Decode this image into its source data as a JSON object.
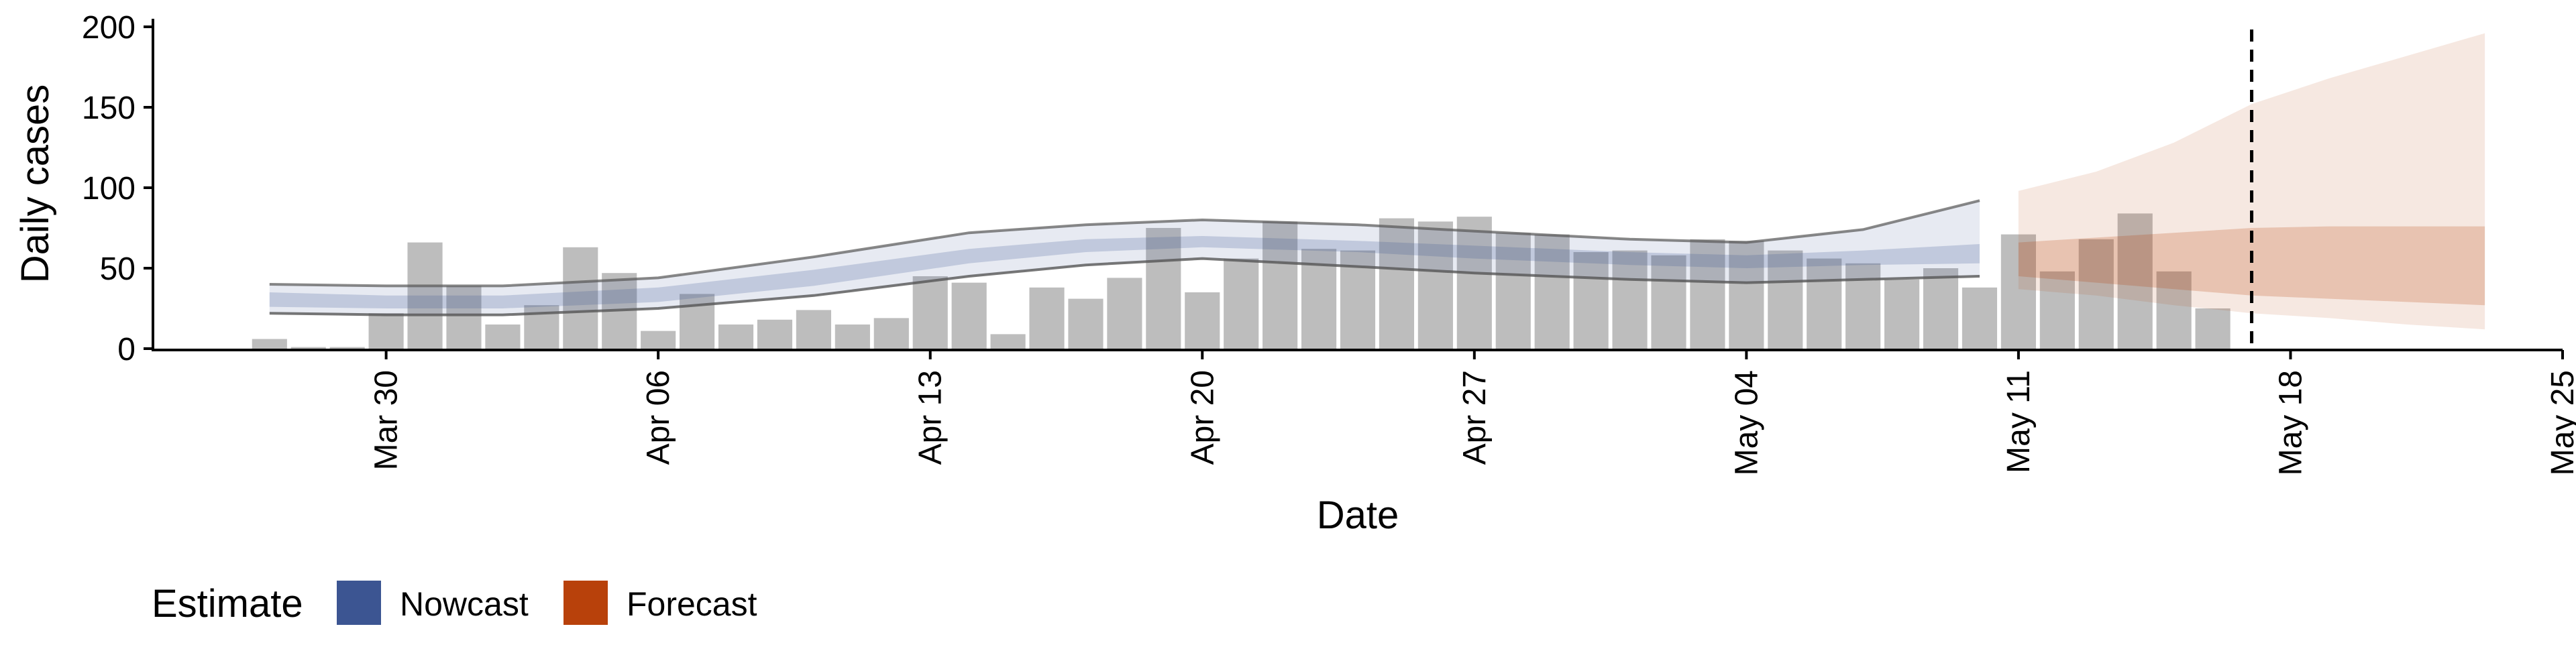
{
  "chart_data": {
    "type": "bar",
    "title": "",
    "xlabel": "Date",
    "ylabel": "Daily cases",
    "ylim": [
      0,
      200
    ],
    "y_ticks": [
      0,
      50,
      100,
      150,
      200
    ],
    "x_range": [
      "2020-03-24",
      "2020-05-25"
    ],
    "x_tick_labels": [
      {
        "date": "2020-03-30",
        "label": "Mar 30"
      },
      {
        "date": "2020-04-06",
        "label": "Apr 06"
      },
      {
        "date": "2020-04-13",
        "label": "Apr 13"
      },
      {
        "date": "2020-04-20",
        "label": "Apr 20"
      },
      {
        "date": "2020-04-27",
        "label": "Apr 27"
      },
      {
        "date": "2020-05-04",
        "label": "May 04"
      },
      {
        "date": "2020-05-11",
        "label": "May 11"
      },
      {
        "date": "2020-05-18",
        "label": "May 18"
      },
      {
        "date": "2020-05-25",
        "label": "May 25"
      }
    ],
    "grid": false,
    "reference_line": {
      "date": "2020-05-17",
      "style": "dashed"
    },
    "observed": {
      "dates": [
        "2020-03-27",
        "2020-03-28",
        "2020-03-29",
        "2020-03-30",
        "2020-03-31",
        "2020-04-01",
        "2020-04-02",
        "2020-04-03",
        "2020-04-04",
        "2020-04-05",
        "2020-04-06",
        "2020-04-07",
        "2020-04-08",
        "2020-04-09",
        "2020-04-10",
        "2020-04-11",
        "2020-04-12",
        "2020-04-13",
        "2020-04-14",
        "2020-04-15",
        "2020-04-16",
        "2020-04-17",
        "2020-04-18",
        "2020-04-19",
        "2020-04-20",
        "2020-04-21",
        "2020-04-22",
        "2020-04-23",
        "2020-04-24",
        "2020-04-25",
        "2020-04-26",
        "2020-04-27",
        "2020-04-28",
        "2020-04-29",
        "2020-04-30",
        "2020-05-01",
        "2020-05-02",
        "2020-05-03",
        "2020-05-04",
        "2020-05-05",
        "2020-05-06",
        "2020-05-07",
        "2020-05-08",
        "2020-05-09",
        "2020-05-10",
        "2020-05-11",
        "2020-05-12",
        "2020-05-13",
        "2020-05-14",
        "2020-05-15",
        "2020-05-16",
        "2020-05-17"
      ],
      "values": [
        6,
        1,
        1,
        22,
        66,
        39,
        15,
        27,
        63,
        47,
        11,
        34,
        15,
        18,
        24,
        15,
        19,
        45,
        41,
        9,
        38,
        31,
        44,
        75,
        35,
        56,
        79,
        62,
        61,
        81,
        79,
        82,
        72,
        71,
        60,
        61,
        58,
        68,
        67,
        61,
        56,
        53,
        43,
        50,
        38,
        71,
        48,
        68,
        84,
        48,
        25,
        0
      ]
    },
    "series": [
      {
        "name": "Nowcast",
        "color": "#3C5592",
        "dates": [
          "2020-03-27",
          "2020-03-30",
          "2020-04-02",
          "2020-04-06",
          "2020-04-10",
          "2020-04-14",
          "2020-04-17",
          "2020-04-20",
          "2020-04-24",
          "2020-04-27",
          "2020-05-01",
          "2020-05-04",
          "2020-05-07",
          "2020-05-10"
        ],
        "outer_low": [
          22,
          21,
          21,
          25,
          33,
          45,
          52,
          56,
          51,
          47,
          43,
          41,
          43,
          45
        ],
        "outer_high": [
          40,
          39,
          39,
          44,
          57,
          72,
          77,
          80,
          77,
          73,
          68,
          66,
          74,
          92
        ],
        "inner_low": [
          26,
          25,
          25,
          29,
          39,
          53,
          60,
          63,
          60,
          56,
          52,
          50,
          52,
          53
        ],
        "inner_high": [
          35,
          33,
          33,
          38,
          49,
          62,
          68,
          70,
          67,
          64,
          60,
          58,
          61,
          65
        ]
      },
      {
        "name": "Forecast",
        "color": "#B8410B",
        "dates": [
          "2020-05-11",
          "2020-05-13",
          "2020-05-15",
          "2020-05-17",
          "2020-05-19",
          "2020-05-21",
          "2020-05-23"
        ],
        "outer_low": [
          37,
          33,
          27,
          22,
          19,
          15,
          12
        ],
        "outer_high": [
          98,
          110,
          128,
          152,
          168,
          182,
          196
        ],
        "inner_low": [
          45,
          41,
          37,
          33,
          31,
          29,
          27
        ],
        "inner_high": [
          66,
          69,
          72,
          75,
          76,
          76,
          76
        ]
      }
    ],
    "legend": {
      "title": "Estimate",
      "placement": "bottom-left",
      "entries": [
        "Nowcast",
        "Forecast"
      ]
    }
  }
}
